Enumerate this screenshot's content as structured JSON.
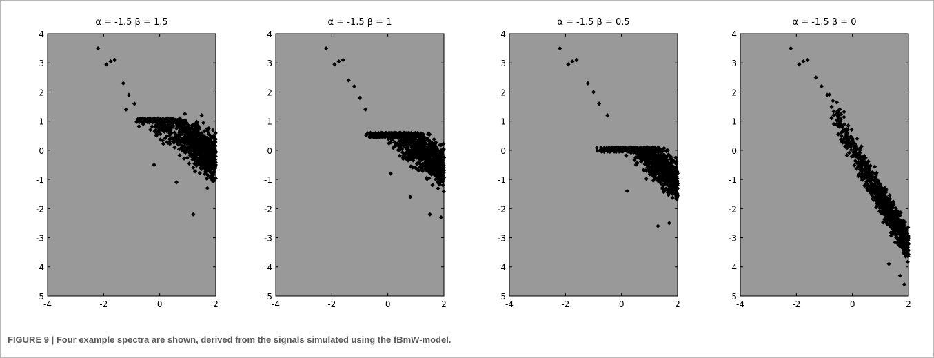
{
  "caption": {
    "label": "FIGURE 9 |",
    "text": "Four example spectra are shown, derived from the signals simulated using the fBmW-model."
  },
  "colors": {
    "axes_background": "#999999",
    "marker": "#000000",
    "frame": "#b9b9b9",
    "caption_text": "#5a5a5a"
  },
  "chart_data": [
    {
      "type": "scatter",
      "title": "α = -1.5    β = 1.5",
      "xlabel": "",
      "ylabel": "",
      "xlim": [
        -4,
        2
      ],
      "ylim": [
        -5,
        4
      ],
      "xticks": [
        -4,
        -2,
        0,
        2
      ],
      "yticks": [
        4,
        3,
        2,
        1,
        0,
        -1,
        -2,
        -3,
        -4,
        -5
      ],
      "grid": false,
      "series": [
        {
          "points": [
            [
              -2.2,
              3.5
            ],
            [
              -1.75,
              3.05
            ],
            [
              -1.6,
              3.1
            ],
            [
              -1.9,
              2.95
            ],
            [
              -1.3,
              2.3
            ],
            [
              -1.1,
              1.9
            ],
            [
              -1.2,
              1.4
            ],
            [
              -0.9,
              1.6
            ],
            [
              -0.6,
              1.1
            ],
            [
              1.2,
              -2.2
            ],
            [
              1.7,
              -1.3
            ],
            [
              -0.2,
              -0.5
            ],
            [
              0.6,
              -1.1
            ],
            [
              0.9,
              1.25
            ],
            [
              1.5,
              1.2
            ]
          ],
          "trend": {
            "x_start": -1.0,
            "x_end": 2.0,
            "y_start": 1.75,
            "y_end": -0.3,
            "spread": 1.1,
            "ceiling": 1.1
          }
        }
      ]
    },
    {
      "type": "scatter",
      "title": "α = -1.5    β = 1",
      "xlabel": "",
      "ylabel": "",
      "xlim": [
        -4,
        2
      ],
      "ylim": [
        -5,
        4
      ],
      "xticks": [
        -4,
        -2,
        0,
        2
      ],
      "yticks": [
        4,
        3,
        2,
        1,
        0,
        -1,
        -2,
        -3,
        -4,
        -5
      ],
      "grid": false,
      "series": [
        {
          "points": [
            [
              -2.2,
              3.5
            ],
            [
              -1.75,
              3.05
            ],
            [
              -1.6,
              3.1
            ],
            [
              -1.9,
              2.95
            ],
            [
              -1.4,
              2.4
            ],
            [
              -1.2,
              2.2
            ],
            [
              -1.0,
              1.8
            ],
            [
              -0.8,
              1.4
            ],
            [
              1.5,
              -2.2
            ],
            [
              1.9,
              -2.3
            ],
            [
              0.1,
              -0.8
            ],
            [
              0.8,
              -1.6
            ]
          ],
          "trend": {
            "x_start": -1.0,
            "x_end": 2.0,
            "y_start": 1.65,
            "y_end": -0.6,
            "spread": 1.0,
            "ceiling": 0.6
          }
        }
      ]
    },
    {
      "type": "scatter",
      "title": "α = -1.5    β = 0.5",
      "xlabel": "",
      "ylabel": "",
      "xlim": [
        -4,
        2
      ],
      "ylim": [
        -5,
        4
      ],
      "xticks": [
        -4,
        -2,
        0,
        2
      ],
      "yticks": [
        4,
        3,
        2,
        1,
        0,
        -1,
        -2,
        -3,
        -4,
        -5
      ],
      "grid": false,
      "series": [
        {
          "points": [
            [
              -2.2,
              3.5
            ],
            [
              -1.75,
              3.05
            ],
            [
              -1.6,
              3.1
            ],
            [
              -1.9,
              2.95
            ],
            [
              -1.2,
              2.3
            ],
            [
              -1.0,
              2.0
            ],
            [
              -0.8,
              1.6
            ],
            [
              -0.5,
              1.2
            ],
            [
              1.3,
              -2.6
            ],
            [
              1.7,
              -2.5
            ],
            [
              0.2,
              -1.4
            ]
          ],
          "trend": {
            "x_start": -1.0,
            "x_end": 2.0,
            "y_start": 1.7,
            "y_end": -1.1,
            "spread": 1.0,
            "ceiling": 0.1
          }
        }
      ]
    },
    {
      "type": "scatter",
      "title": "α = -1.5    β = 0",
      "xlabel": "",
      "ylabel": "",
      "xlim": [
        -4,
        2
      ],
      "ylim": [
        -5,
        4
      ],
      "xticks": [
        -4,
        -2,
        0,
        2
      ],
      "yticks": [
        4,
        3,
        2,
        1,
        0,
        -1,
        -2,
        -3,
        -4,
        -5
      ],
      "grid": false,
      "series": [
        {
          "points": [
            [
              -2.2,
              3.5
            ],
            [
              -1.75,
              3.05
            ],
            [
              -1.6,
              3.1
            ],
            [
              -1.9,
              2.95
            ],
            [
              -1.3,
              2.5
            ],
            [
              -1.1,
              2.2
            ],
            [
              -0.9,
              1.9
            ],
            [
              1.3,
              -3.9
            ],
            [
              1.7,
              -4.3
            ],
            [
              1.85,
              -4.6
            ]
          ],
          "trend": {
            "x_start": -1.0,
            "x_end": 2.0,
            "y_start": 1.8,
            "y_end": -3.3,
            "spread": 0.8,
            "ceiling": 10
          }
        }
      ]
    }
  ]
}
